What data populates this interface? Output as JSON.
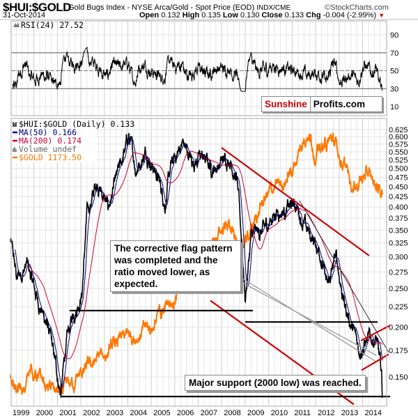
{
  "header": {
    "symbol": "$HUI:$GOLD",
    "description": "Gold Bugs Index - NYSE Arca/Gold - Spot Price (EOD)",
    "exchange": "INDX/CME",
    "copyright": "©StockCharts.com",
    "date": "31-Oct-2014",
    "open_label": "Open",
    "open": "0.132",
    "high_label": "High",
    "high": "0.135",
    "low_label": "Low",
    "low": "0.130",
    "close_label": "Close",
    "close": "0.133",
    "chg_label": "Chg",
    "chg": "-0.004 (-2.99%)",
    "chg_color": "#cc0000"
  },
  "watermark": {
    "part1": "Sunshine",
    "part2": "Profits.com",
    "part1_color": "#cc0000"
  },
  "annotations": {
    "flag": "The corrective flag pattern was completed and the ratio moved lower, as expected.",
    "support": "Major support (2000 low) was reached."
  },
  "chart_data": [
    {
      "type": "line",
      "panel": "indicator",
      "title": "RSI(24) 27.52",
      "ylim": [
        0,
        100
      ],
      "yticks": [
        10,
        30,
        50,
        70,
        90
      ],
      "reference_lines": [
        30,
        50,
        70
      ],
      "last": 27.52,
      "series_color": "#000000"
    },
    {
      "type": "line",
      "panel": "price",
      "yscale": "log",
      "ylim": [
        0.127,
        0.666
      ],
      "xlim": [
        1999.0,
        2015.0
      ],
      "grid": true,
      "legend_placement": "top-left",
      "yticks": [
        "0.150",
        "0.175",
        "0.200",
        "0.225",
        "0.250",
        "0.275",
        "0.300",
        "0.325",
        "0.350",
        "0.375",
        "0.400",
        "0.425",
        "0.450",
        "0.475",
        "0.500",
        "0.525",
        "0.550",
        "0.575",
        "0.600",
        "0.625"
      ],
      "xticks": [
        "1999",
        "2000",
        "2001",
        "2002",
        "2003",
        "2004",
        "2005",
        "2006",
        "2007",
        "2008",
        "2009",
        "2010",
        "2011",
        "2012",
        "2013",
        "2014"
      ],
      "legend": [
        {
          "label": "$HUI:$GOLD (Daily) 0.133",
          "color": "#000000"
        },
        {
          "label": "MA(50) 0.166",
          "color": "#000080"
        },
        {
          "label": "MA(200) 0.174",
          "color": "#cc0033"
        },
        {
          "label": "Volume undef",
          "color": "#666666"
        },
        {
          "label": "$GOLD 1173.50",
          "color": "#ff7700"
        }
      ],
      "series": [
        {
          "name": "$HUI:$GOLD",
          "color": "#000000",
          "points": [
            [
              1999.0,
              0.33
            ],
            [
              1999.27,
              0.264
            ],
            [
              1999.7,
              0.287
            ],
            [
              2000.15,
              0.235
            ],
            [
              2000.6,
              0.2
            ],
            [
              2001.15,
              0.136
            ],
            [
              2001.35,
              0.177
            ],
            [
              2001.67,
              0.216
            ],
            [
              2002.05,
              0.245
            ],
            [
              2002.25,
              0.38
            ],
            [
              2002.7,
              0.465
            ],
            [
              2003.15,
              0.395
            ],
            [
              2003.6,
              0.483
            ],
            [
              2004.04,
              0.6
            ],
            [
              2004.34,
              0.5
            ],
            [
              2004.79,
              0.555
            ],
            [
              2005.23,
              0.483
            ],
            [
              2005.59,
              0.41
            ],
            [
              2005.83,
              0.5
            ],
            [
              2006.33,
              0.58
            ],
            [
              2006.72,
              0.52
            ],
            [
              2007.16,
              0.535
            ],
            [
              2007.61,
              0.5
            ],
            [
              2008.35,
              0.535
            ],
            [
              2008.65,
              0.465
            ],
            [
              2008.88,
              0.31
            ],
            [
              2009.0,
              0.235
            ],
            [
              2009.24,
              0.335
            ],
            [
              2009.83,
              0.35
            ],
            [
              2010.28,
              0.39
            ],
            [
              2010.72,
              0.395
            ],
            [
              2011.17,
              0.405
            ],
            [
              2011.61,
              0.35
            ],
            [
              2012.2,
              0.31
            ],
            [
              2012.5,
              0.249
            ],
            [
              2012.86,
              0.3
            ],
            [
              2013.24,
              0.227
            ],
            [
              2013.54,
              0.2
            ],
            [
              2013.84,
              0.177
            ],
            [
              2014.13,
              0.184
            ],
            [
              2014.58,
              0.188
            ],
            [
              2014.81,
              0.15
            ],
            [
              2014.84,
              0.133
            ]
          ]
        },
        {
          "name": "$GOLD",
          "color": "#ff7700",
          "points": [
            [
              1999.0,
              290
            ],
            [
              1999.6,
              255
            ],
            [
              1999.8,
              320
            ],
            [
              2000.5,
              275
            ],
            [
              2001.2,
              258
            ],
            [
              2002.0,
              300
            ],
            [
              2003.0,
              350
            ],
            [
              2004.0,
              400
            ],
            [
              2005.0,
              430
            ],
            [
              2006.0,
              550
            ],
            [
              2006.4,
              700
            ],
            [
              2007.0,
              650
            ],
            [
              2008.2,
              950
            ],
            [
              2008.8,
              750
            ],
            [
              2009.9,
              1150
            ],
            [
              2010.5,
              1250
            ],
            [
              2011.0,
              1400
            ],
            [
              2011.65,
              1900
            ],
            [
              2012.0,
              1600
            ],
            [
              2012.7,
              1750
            ],
            [
              2013.3,
              1400
            ],
            [
              2013.5,
              1250
            ],
            [
              2014.2,
              1350
            ],
            [
              2014.84,
              1173.5
            ]
          ]
        }
      ],
      "trendlines": [
        {
          "color": "#cc0000",
          "from": [
            2007.99,
            0.563
          ],
          "to": [
            2014.28,
            0.302
          ]
        },
        {
          "color": "#cc0000",
          "from": [
            2007.52,
            0.233
          ],
          "to": [
            2013.63,
            0.128
          ]
        },
        {
          "color": "#333333",
          "from": [
            2011.31,
            0.415
          ],
          "to": [
            2015.11,
            0.173
          ]
        },
        {
          "color": "#000000",
          "from": [
            2001.52,
            0.22
          ],
          "to": [
            2009.33,
            0.22
          ]
        },
        {
          "color": "#000000",
          "from": [
            2009.0,
            0.206
          ],
          "to": [
            2014.64,
            0.206
          ]
        },
        {
          "color": "#000000",
          "from": [
            2001.17,
            0.134
          ],
          "to": [
            2015.17,
            0.134
          ]
        },
        {
          "color": "#cc0000",
          "from": [
            2013.93,
            0.185
          ],
          "to": [
            2015.17,
            0.202
          ]
        },
        {
          "color": "#cc0000",
          "from": [
            2013.96,
            0.156
          ],
          "to": [
            2015.11,
            0.171
          ]
        }
      ]
    }
  ]
}
